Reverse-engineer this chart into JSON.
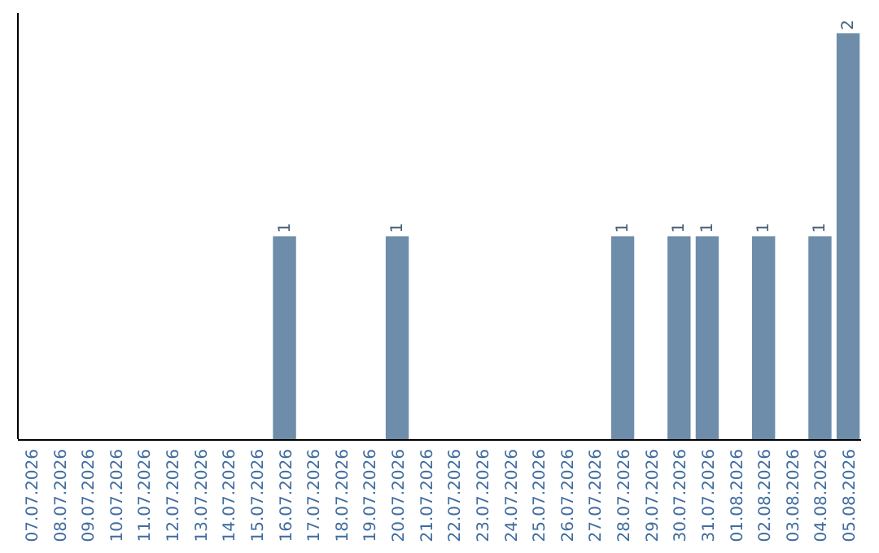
{
  "chart_data": {
    "type": "bar",
    "categories": [
      "07.07.2026",
      "08.07.2026",
      "09.07.2026",
      "10.07.2026",
      "11.07.2026",
      "12.07.2026",
      "13.07.2026",
      "14.07.2026",
      "15.07.2026",
      "16.07.2026",
      "17.07.2026",
      "18.07.2026",
      "19.07.2026",
      "20.07.2026",
      "21.07.2026",
      "22.07.2026",
      "23.07.2026",
      "24.07.2026",
      "25.07.2026",
      "26.07.2026",
      "27.07.2026",
      "28.07.2026",
      "29.07.2026",
      "30.07.2026",
      "31.07.2026",
      "01.08.2026",
      "02.08.2026",
      "03.08.2026",
      "04.08.2026",
      "05.08.2026"
    ],
    "values": [
      0,
      0,
      0,
      0,
      0,
      0,
      0,
      0,
      0,
      1,
      0,
      0,
      0,
      1,
      0,
      0,
      0,
      0,
      0,
      0,
      0,
      1,
      0,
      1,
      1,
      0,
      1,
      0,
      1,
      2
    ],
    "value_labels": [
      null,
      null,
      null,
      null,
      null,
      null,
      null,
      null,
      null,
      "1",
      null,
      null,
      null,
      "1",
      null,
      null,
      null,
      null,
      null,
      null,
      null,
      "1",
      null,
      "1",
      "1",
      null,
      "1",
      null,
      "1",
      "2"
    ],
    "color": "#6e8dab",
    "ylim": [
      0,
      2.1
    ]
  }
}
